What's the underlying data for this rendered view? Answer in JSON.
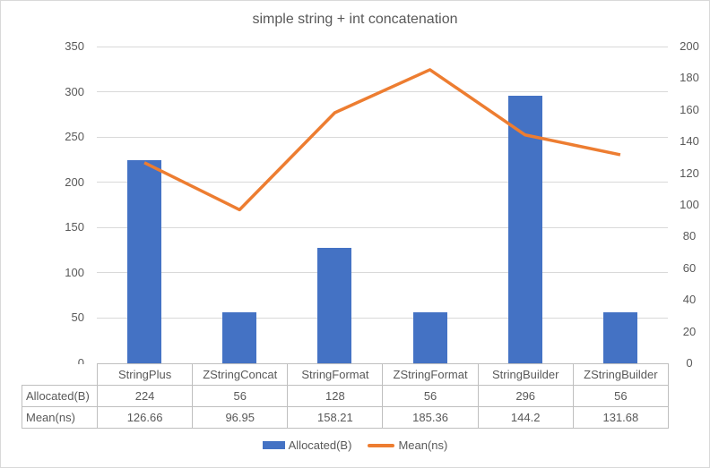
{
  "title": "simple string + int concatenation",
  "chart_data": {
    "type": "combo (bar + line, dual axis)",
    "title": "simple string + int concatenation",
    "categories": [
      "StringPlus",
      "ZStringConcat",
      "StringFormat",
      "ZStringFormat",
      "StringBuilder",
      "ZStringBuilder"
    ],
    "series": [
      {
        "name": "Allocated(B)",
        "type": "bar",
        "y_axis": "left",
        "color": "#4472C4",
        "values": [
          224,
          56,
          128,
          56,
          296,
          56
        ]
      },
      {
        "name": "Mean(ns)",
        "type": "line",
        "y_axis": "right",
        "color": "#ED7D31",
        "values": [
          126.66,
          96.95,
          158.21,
          185.36,
          144.2,
          131.68
        ]
      }
    ],
    "left_axis": {
      "min": 0,
      "max": 350,
      "ticks": [
        0,
        50,
        100,
        150,
        200,
        250,
        300,
        350
      ]
    },
    "right_axis": {
      "min": 0,
      "max": 200,
      "ticks": [
        0,
        20,
        40,
        60,
        80,
        100,
        120,
        140,
        160,
        180,
        200
      ]
    },
    "grid": true,
    "legend_position": "bottom"
  },
  "table": {
    "columns": [
      "StringPlus",
      "ZStringConcat",
      "StringFormat",
      "ZStringFormat",
      "StringBuilder",
      "ZStringBuilder"
    ],
    "rows": [
      {
        "label": "Allocated(B)",
        "values": [
          "224",
          "56",
          "128",
          "56",
          "296",
          "56"
        ]
      },
      {
        "label": "Mean(ns)",
        "values": [
          "126.66",
          "96.95",
          "158.21",
          "185.36",
          "144.2",
          "131.68"
        ]
      }
    ]
  },
  "legend": {
    "items": [
      {
        "label": "Allocated(B)",
        "swatch": "rect",
        "color": "#4472C4"
      },
      {
        "label": "Mean(ns)",
        "swatch": "line",
        "color": "#ED7D31"
      }
    ]
  },
  "colors": {
    "text": "#595959",
    "gridline": "#D9D9D9",
    "table_border": "#BFBFBF",
    "bar": "#4472C4",
    "line": "#ED7D31"
  }
}
